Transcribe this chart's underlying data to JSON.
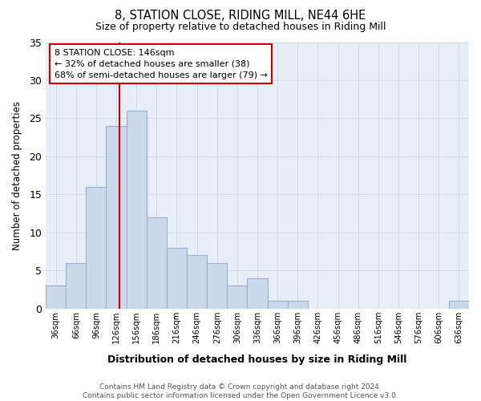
{
  "title": "8, STATION CLOSE, RIDING MILL, NE44 6HE",
  "subtitle": "Size of property relative to detached houses in Riding Mill",
  "xlabel": "Distribution of detached houses by size in Riding Mill",
  "ylabel": "Number of detached properties",
  "bar_color": "#ccd9ea",
  "bar_edge_color": "#9ab0cc",
  "bin_edges": [
    36,
    66,
    96,
    126,
    156,
    186,
    216,
    246,
    276,
    306,
    336,
    366,
    396,
    426,
    456,
    486,
    516,
    546,
    576,
    606,
    636,
    666
  ],
  "bar_heights": [
    3,
    6,
    16,
    24,
    26,
    12,
    8,
    7,
    6,
    3,
    4,
    1,
    1,
    0,
    0,
    0,
    0,
    0,
    0,
    0,
    1
  ],
  "tick_labels": [
    "36sqm",
    "66sqm",
    "96sqm",
    "126sqm",
    "156sqm",
    "186sqm",
    "216sqm",
    "246sqm",
    "276sqm",
    "306sqm",
    "336sqm",
    "366sqm",
    "396sqm",
    "426sqm",
    "456sqm",
    "486sqm",
    "516sqm",
    "546sqm",
    "576sqm",
    "606sqm",
    "636sqm"
  ],
  "property_size": 146,
  "vline_color": "#cc0000",
  "annotation_box_color": "#cc0000",
  "annotation_text": "8 STATION CLOSE: 146sqm\n← 32% of detached houses are smaller (38)\n68% of semi-detached houses are larger (79) →",
  "ylim": [
    0,
    35
  ],
  "yticks": [
    0,
    5,
    10,
    15,
    20,
    25,
    30,
    35
  ],
  "grid_color": "#d0daec",
  "background_color": "#e8eef8",
  "footer": "Contains HM Land Registry data © Crown copyright and database right 2024.\nContains public sector information licensed under the Open Government Licence v3.0."
}
